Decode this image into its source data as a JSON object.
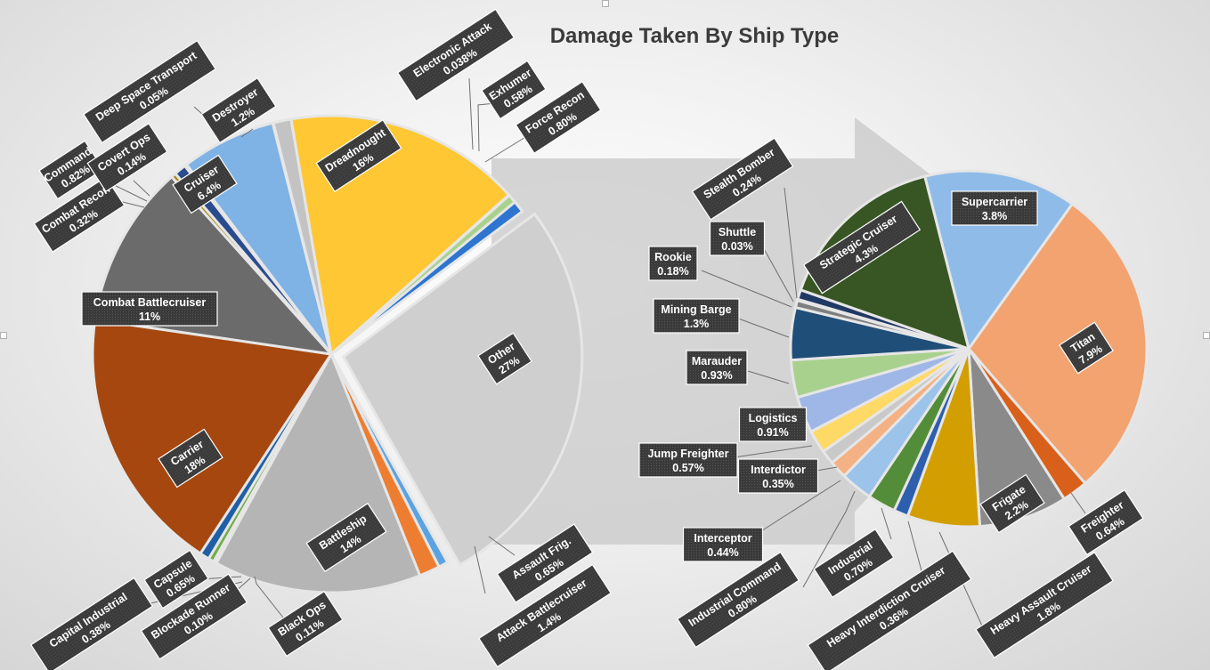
{
  "chart_data": {
    "type": "pie",
    "subtype": "pie-of-pie",
    "title": "Damage Taken By Ship Type",
    "main_pie": {
      "slices": [
        {
          "label": "Dreadnought",
          "value": 16,
          "display": "16%",
          "color": "#ffc733"
        },
        {
          "label": "Electronic Attack",
          "value": 0.038,
          "display": "0.038%",
          "color": "#5b9bd5"
        },
        {
          "label": "Exhumer",
          "value": 0.58,
          "display": "0.58%",
          "color": "#a9d18e"
        },
        {
          "label": "Force Recon",
          "value": 0.8,
          "display": "0.80%",
          "color": "#2e75d0"
        },
        {
          "label": "Other",
          "value": 27,
          "display": "27%",
          "color": "#cfcfcf"
        },
        {
          "label": "Assault Frig.",
          "value": 0.65,
          "display": "0.65%",
          "color": "#5ba3e0"
        },
        {
          "label": "Attack Battlecruiser",
          "value": 1.4,
          "display": "1.4%",
          "color": "#ed7d31"
        },
        {
          "label": "Battleship",
          "value": 14,
          "display": "14%",
          "color": "#b5b5b5"
        },
        {
          "label": "Black Ops",
          "value": 0.11,
          "display": "0.11%",
          "color": "#ffc000"
        },
        {
          "label": "Blockade Runner",
          "value": 0.1,
          "display": "0.10%",
          "color": "#4472c4"
        },
        {
          "label": "Capital Industrial",
          "value": 0.38,
          "display": "0.38%",
          "color": "#70ad47"
        },
        {
          "label": "Capsule",
          "value": 0.65,
          "display": "0.65%",
          "color": "#1f5fa8"
        },
        {
          "label": "Carrier",
          "value": 18,
          "display": "18%",
          "color": "#a5470f"
        },
        {
          "label": "Combat Battlecruiser",
          "value": 11,
          "display": "11%",
          "color": "#6b6b6b"
        },
        {
          "label": "Combat Recon",
          "value": 0.32,
          "display": "0.32%",
          "color": "#a68b1c"
        },
        {
          "label": "Command",
          "value": 0.82,
          "display": "0.82%",
          "color": "#2a4b8d"
        },
        {
          "label": "Covert Ops",
          "value": 0.14,
          "display": "0.14%",
          "color": "#3d7a2a"
        },
        {
          "label": "Cruiser",
          "value": 6.4,
          "display": "6.4%",
          "color": "#7fb2e5"
        },
        {
          "label": "Deep Space Transport",
          "value": 0.05,
          "display": "0.05%",
          "color": "#f2a26e"
        },
        {
          "label": "Destroyer",
          "value": 1.2,
          "display": "1.2%",
          "color": "#c3c3c3"
        }
      ]
    },
    "secondary_pie": {
      "slices": [
        {
          "label": "Supercarrier",
          "value": 3.8,
          "display": "3.8%",
          "color": "#8fbbe8"
        },
        {
          "label": "Titan",
          "value": 7.9,
          "display": "7.9%",
          "color": "#f2a36f"
        },
        {
          "label": "Freighter",
          "value": 0.64,
          "display": "0.64%",
          "color": "#d9601a"
        },
        {
          "label": "Frigate",
          "value": 2.2,
          "display": "2.2%",
          "color": "#8a8a8a"
        },
        {
          "label": "Heavy Assault Cruiser",
          "value": 1.8,
          "display": "1.8%",
          "color": "#d39e00"
        },
        {
          "label": "Heavy Interdiction Cruiser",
          "value": 0.36,
          "display": "0.36%",
          "color": "#2e5fae"
        },
        {
          "label": "Industrial",
          "value": 0.7,
          "display": "0.70%",
          "color": "#548d3a"
        },
        {
          "label": "Industrial Command",
          "value": 0.8,
          "display": "0.80%",
          "color": "#9cc3ea"
        },
        {
          "label": "Interceptor",
          "value": 0.44,
          "display": "0.44%",
          "color": "#f4b183"
        },
        {
          "label": "Interdictor",
          "value": 0.35,
          "display": "0.35%",
          "color": "#c9c9c9"
        },
        {
          "label": "Jump Freighter",
          "value": 0.57,
          "display": "0.57%",
          "color": "#ffd966"
        },
        {
          "label": "Logistics",
          "value": 0.91,
          "display": "0.91%",
          "color": "#9fb7e6"
        },
        {
          "label": "Marauder",
          "value": 0.93,
          "display": "0.93%",
          "color": "#a9d18e"
        },
        {
          "label": "Mining Barge",
          "value": 1.3,
          "display": "1.3%",
          "color": "#1f4e79"
        },
        {
          "label": "Rookie",
          "value": 0.18,
          "display": "0.18%",
          "color": "#7f7f7f"
        },
        {
          "label": "Shuttle",
          "value": 0.03,
          "display": "0.03%",
          "color": "#b08a00"
        },
        {
          "label": "Stealth Bomber",
          "value": 0.24,
          "display": "0.24%",
          "color": "#203864"
        },
        {
          "label": "Strategic Cruiser",
          "value": 4.3,
          "display": "4.3%",
          "color": "#375623"
        }
      ]
    }
  }
}
